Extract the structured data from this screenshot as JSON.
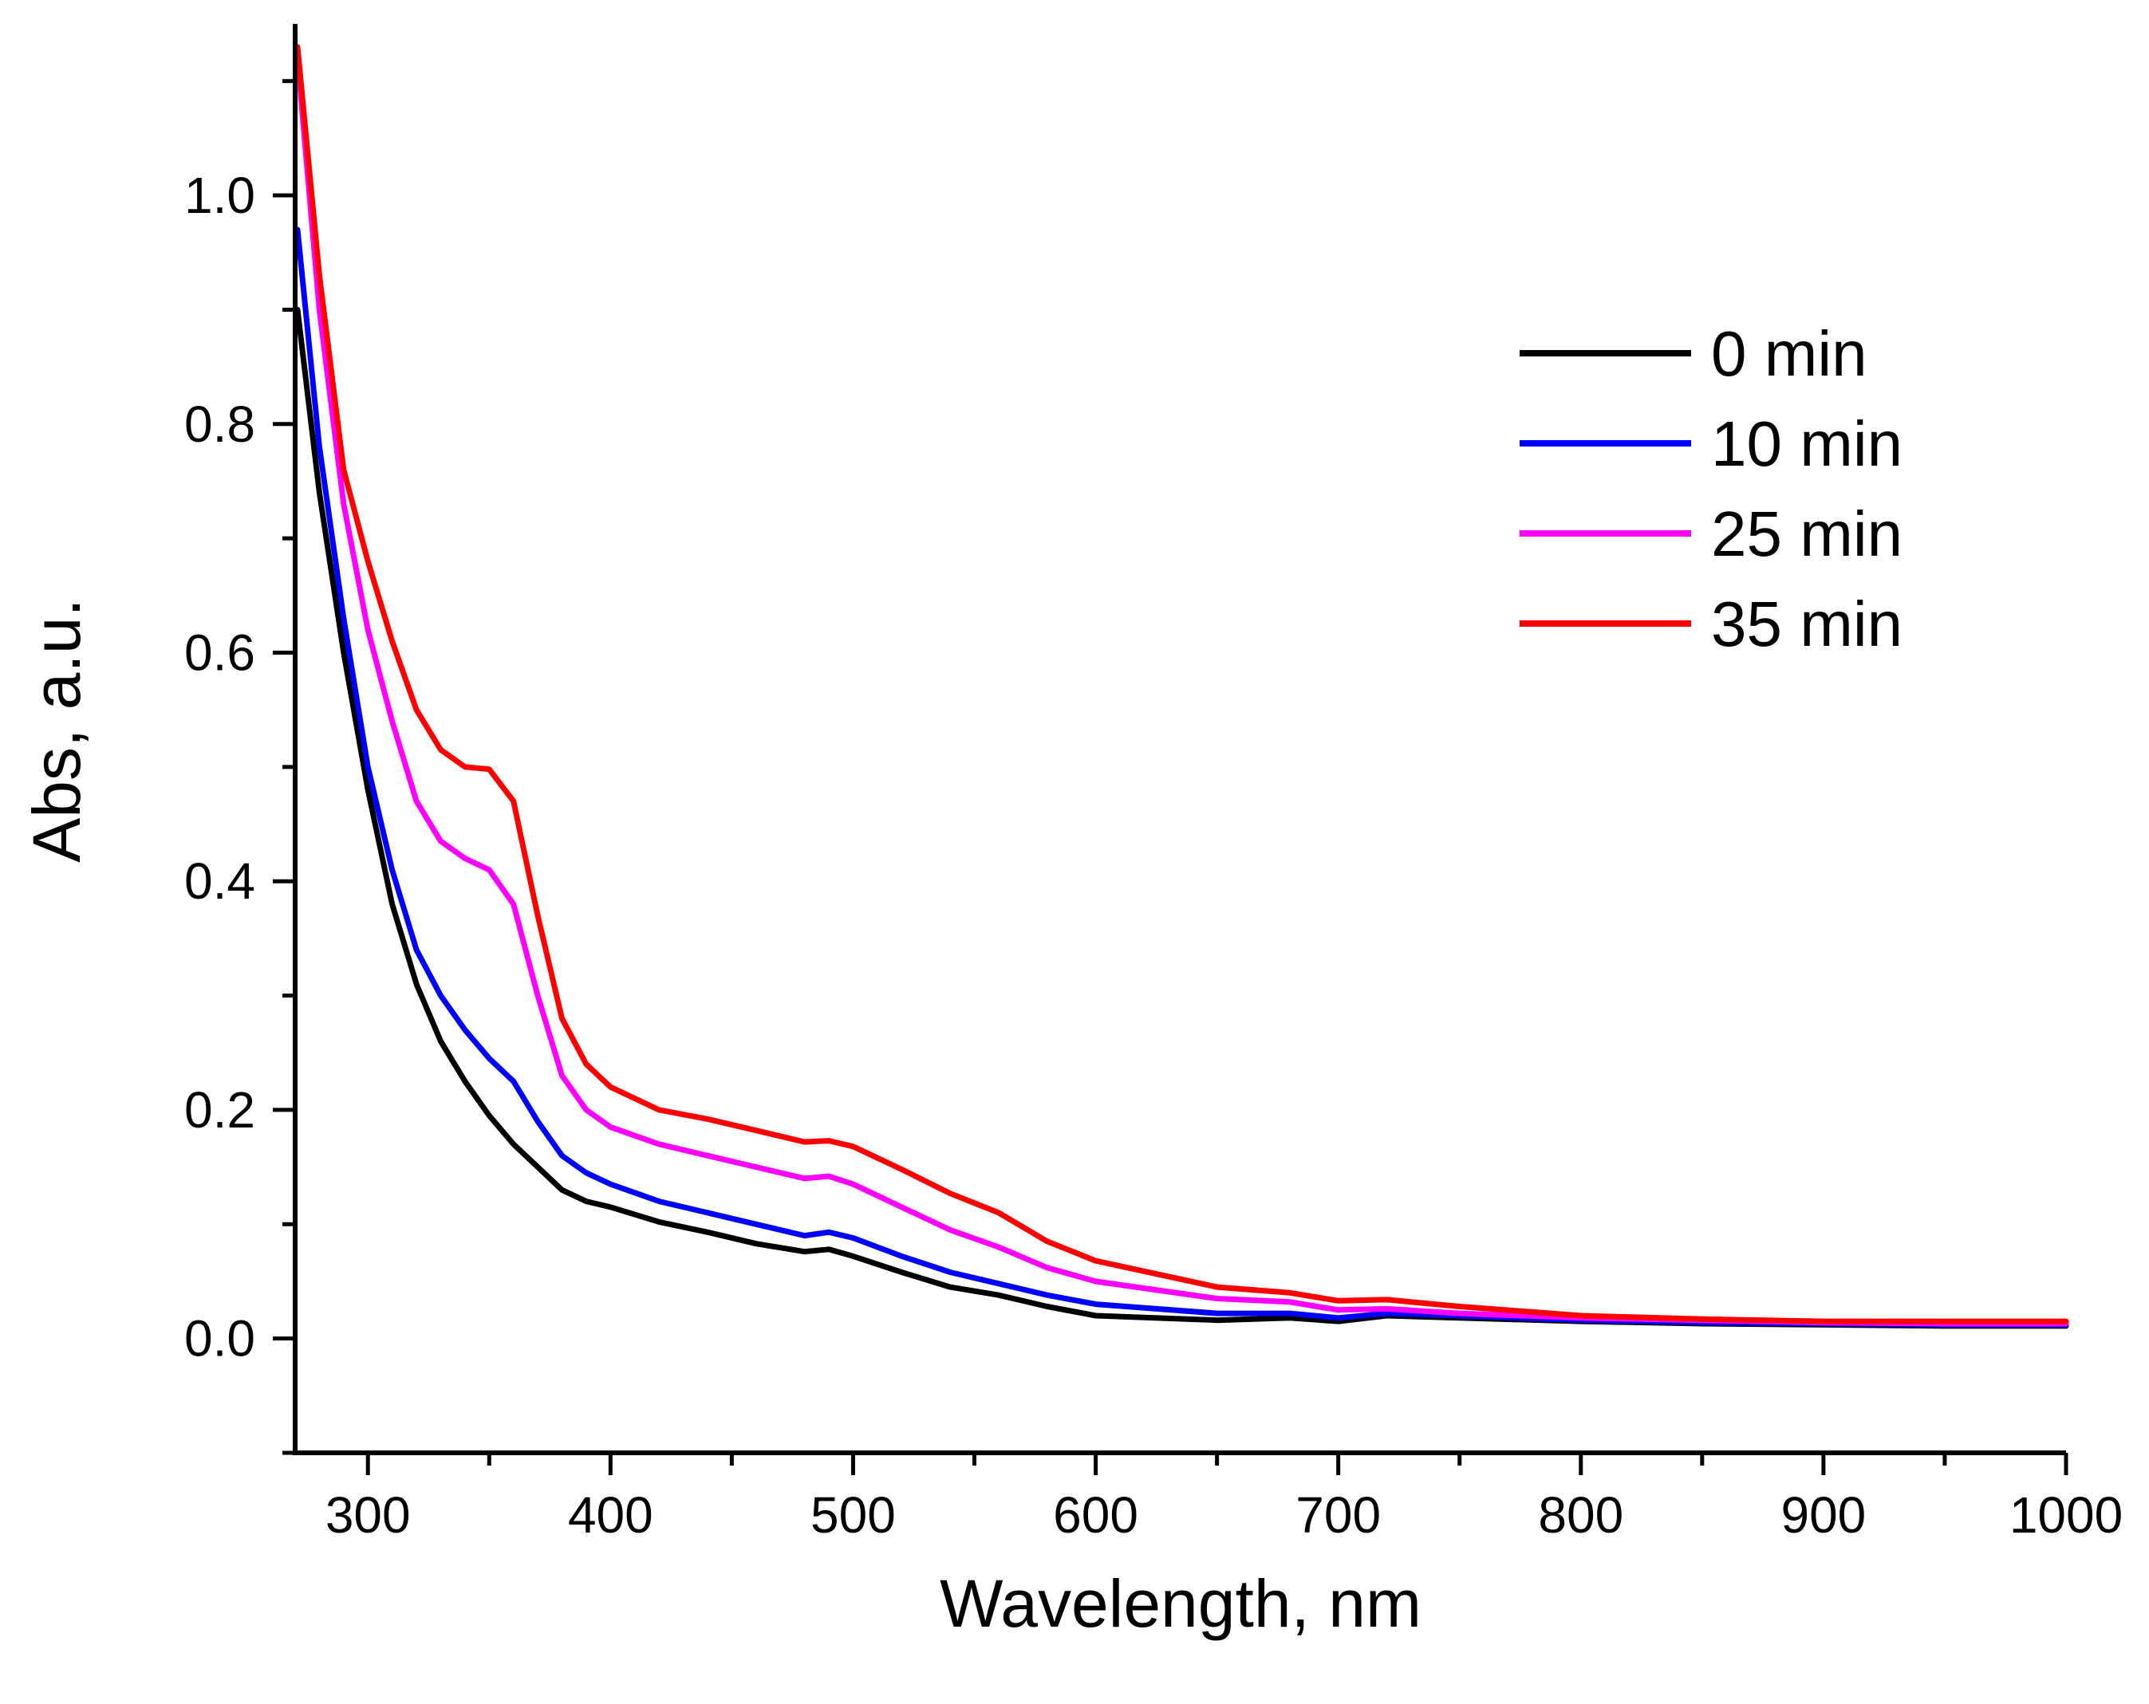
{
  "chart_data": {
    "type": "line",
    "title": "",
    "xlabel": "Wavelength, nm",
    "ylabel": "Abs, a.u.",
    "xlim": [
      270,
      1000
    ],
    "ylim": [
      -0.1,
      1.15
    ],
    "xticks": [
      300,
      400,
      500,
      600,
      700,
      800,
      900,
      1000
    ],
    "xtick_labels": [
      "300",
      "400",
      "500",
      "600",
      "700",
      "800",
      "900",
      "1000"
    ],
    "yticks": [
      0.0,
      0.2,
      0.4,
      0.6,
      0.8,
      1.0
    ],
    "ytick_labels": [
      "0.0",
      "0.2",
      "0.4",
      "0.6",
      "0.8",
      "1.0"
    ],
    "grid": false,
    "legend_position": "top-right",
    "series": [
      {
        "name": "0 min",
        "color": "#000000",
        "x": [
          271,
          280,
          290,
          300,
          310,
          320,
          330,
          340,
          350,
          360,
          370,
          380,
          390,
          400,
          420,
          440,
          460,
          480,
          490,
          500,
          520,
          540,
          560,
          580,
          600,
          650,
          680,
          700,
          720,
          750,
          800,
          850,
          900,
          950,
          1000
        ],
        "y": [
          0.9,
          0.74,
          0.6,
          0.48,
          0.38,
          0.31,
          0.26,
          0.225,
          0.195,
          0.17,
          0.15,
          0.13,
          0.12,
          0.115,
          0.102,
          0.093,
          0.083,
          0.076,
          0.078,
          0.072,
          0.058,
          0.045,
          0.038,
          0.028,
          0.02,
          0.016,
          0.018,
          0.015,
          0.02,
          0.018,
          0.015,
          0.013,
          0.012,
          0.011,
          0.011
        ]
      },
      {
        "name": "10 min",
        "color": "#0000ff",
        "x": [
          271,
          280,
          290,
          300,
          310,
          320,
          330,
          340,
          350,
          360,
          370,
          380,
          390,
          400,
          420,
          440,
          460,
          480,
          490,
          500,
          520,
          540,
          560,
          580,
          600,
          650,
          680,
          700,
          720,
          750,
          800,
          850,
          900,
          950,
          1000
        ],
        "y": [
          0.97,
          0.78,
          0.63,
          0.5,
          0.41,
          0.34,
          0.3,
          0.27,
          0.245,
          0.225,
          0.19,
          0.16,
          0.145,
          0.135,
          0.12,
          0.11,
          0.1,
          0.09,
          0.093,
          0.088,
          0.072,
          0.058,
          0.048,
          0.038,
          0.03,
          0.022,
          0.022,
          0.018,
          0.022,
          0.02,
          0.016,
          0.014,
          0.013,
          0.012,
          0.012
        ]
      },
      {
        "name": "25 min",
        "color": "#ff00ff",
        "x": [
          271,
          280,
          290,
          300,
          310,
          320,
          330,
          340,
          350,
          360,
          370,
          380,
          390,
          400,
          420,
          440,
          460,
          480,
          490,
          500,
          520,
          540,
          560,
          580,
          600,
          650,
          680,
          700,
          720,
          750,
          800,
          850,
          900,
          950,
          1000
        ],
        "y": [
          1.12,
          0.9,
          0.73,
          0.62,
          0.54,
          0.47,
          0.435,
          0.42,
          0.41,
          0.38,
          0.3,
          0.23,
          0.2,
          0.185,
          0.17,
          0.16,
          0.15,
          0.14,
          0.142,
          0.135,
          0.115,
          0.095,
          0.08,
          0.062,
          0.05,
          0.035,
          0.032,
          0.025,
          0.026,
          0.022,
          0.018,
          0.016,
          0.014,
          0.013,
          0.013
        ]
      },
      {
        "name": "35 min",
        "color": "#ff0000",
        "x": [
          271,
          280,
          290,
          300,
          310,
          320,
          330,
          340,
          350,
          360,
          370,
          380,
          390,
          400,
          420,
          440,
          460,
          480,
          490,
          500,
          520,
          540,
          560,
          580,
          600,
          650,
          680,
          700,
          720,
          750,
          800,
          850,
          900,
          950,
          1000
        ],
        "y": [
          1.13,
          0.93,
          0.76,
          0.68,
          0.61,
          0.55,
          0.515,
          0.5,
          0.498,
          0.47,
          0.37,
          0.28,
          0.24,
          0.22,
          0.2,
          0.192,
          0.182,
          0.172,
          0.173,
          0.168,
          0.148,
          0.127,
          0.11,
          0.085,
          0.068,
          0.045,
          0.04,
          0.033,
          0.034,
          0.028,
          0.02,
          0.017,
          0.015,
          0.015,
          0.015
        ]
      }
    ]
  }
}
